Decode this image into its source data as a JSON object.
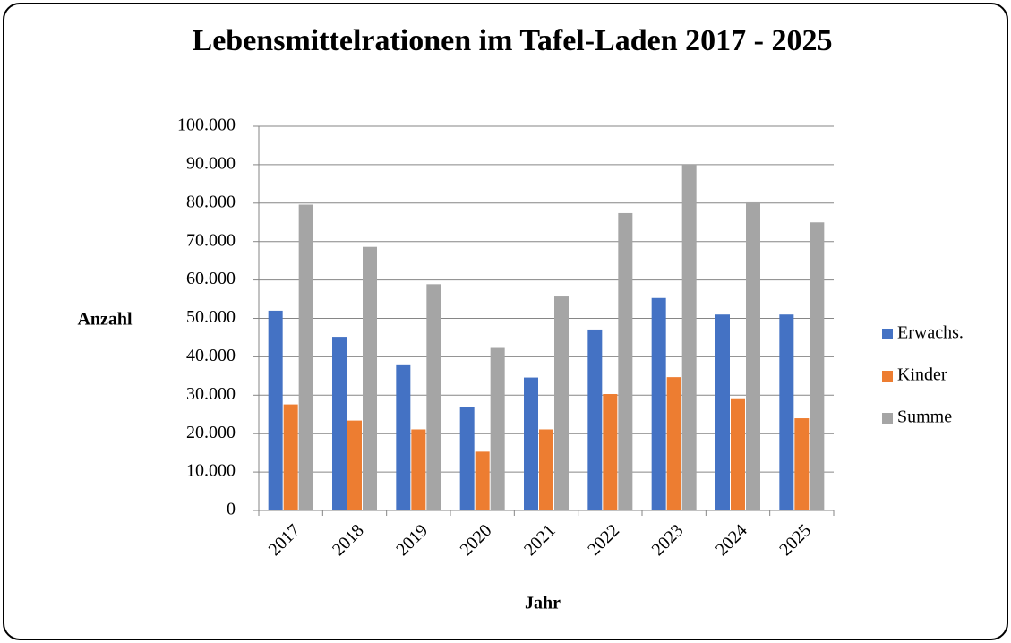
{
  "chart_data": {
    "type": "bar",
    "title": "Lebensmittelrationen im Tafel-Laden 2017 - 2025",
    "x_label": "Jahr",
    "y_label": "Anzahl",
    "categories": [
      "2017",
      "2018",
      "2019",
      "2020",
      "2021",
      "2022",
      "2023",
      "2024",
      "2025"
    ],
    "series": [
      {
        "name": "Erwachs.",
        "color": "#4472c4",
        "values": [
          52000,
          45200,
          37800,
          27000,
          34600,
          47100,
          55300,
          51000,
          51000
        ]
      },
      {
        "name": "Kinder",
        "color": "#ed7d31",
        "values": [
          27600,
          23400,
          21100,
          15300,
          21100,
          30300,
          34700,
          29200,
          24000
        ]
      },
      {
        "name": "Summe",
        "color": "#a5a5a5",
        "values": [
          79600,
          68600,
          58900,
          42300,
          55700,
          77400,
          90000,
          80200,
          75000
        ]
      }
    ],
    "ylim": [
      0,
      100000
    ],
    "yticks": [
      0,
      {
        "value": 10000,
        "label": "10.000"
      },
      {
        "value": 20000,
        "label": "20.000"
      },
      {
        "value": 30000,
        "label": "30.000"
      },
      {
        "value": 40000,
        "label": "40.000"
      },
      {
        "value": 50000,
        "label": "50.000"
      },
      {
        "value": 60000,
        "label": "60.000"
      },
      {
        "value": 70000,
        "label": "70.000"
      },
      {
        "value": 80000,
        "label": "80.000"
      },
      {
        "value": 90000,
        "label": "90.000"
      },
      {
        "value": 100000,
        "label": "100.000"
      }
    ],
    "grid": true,
    "legend": "right"
  }
}
